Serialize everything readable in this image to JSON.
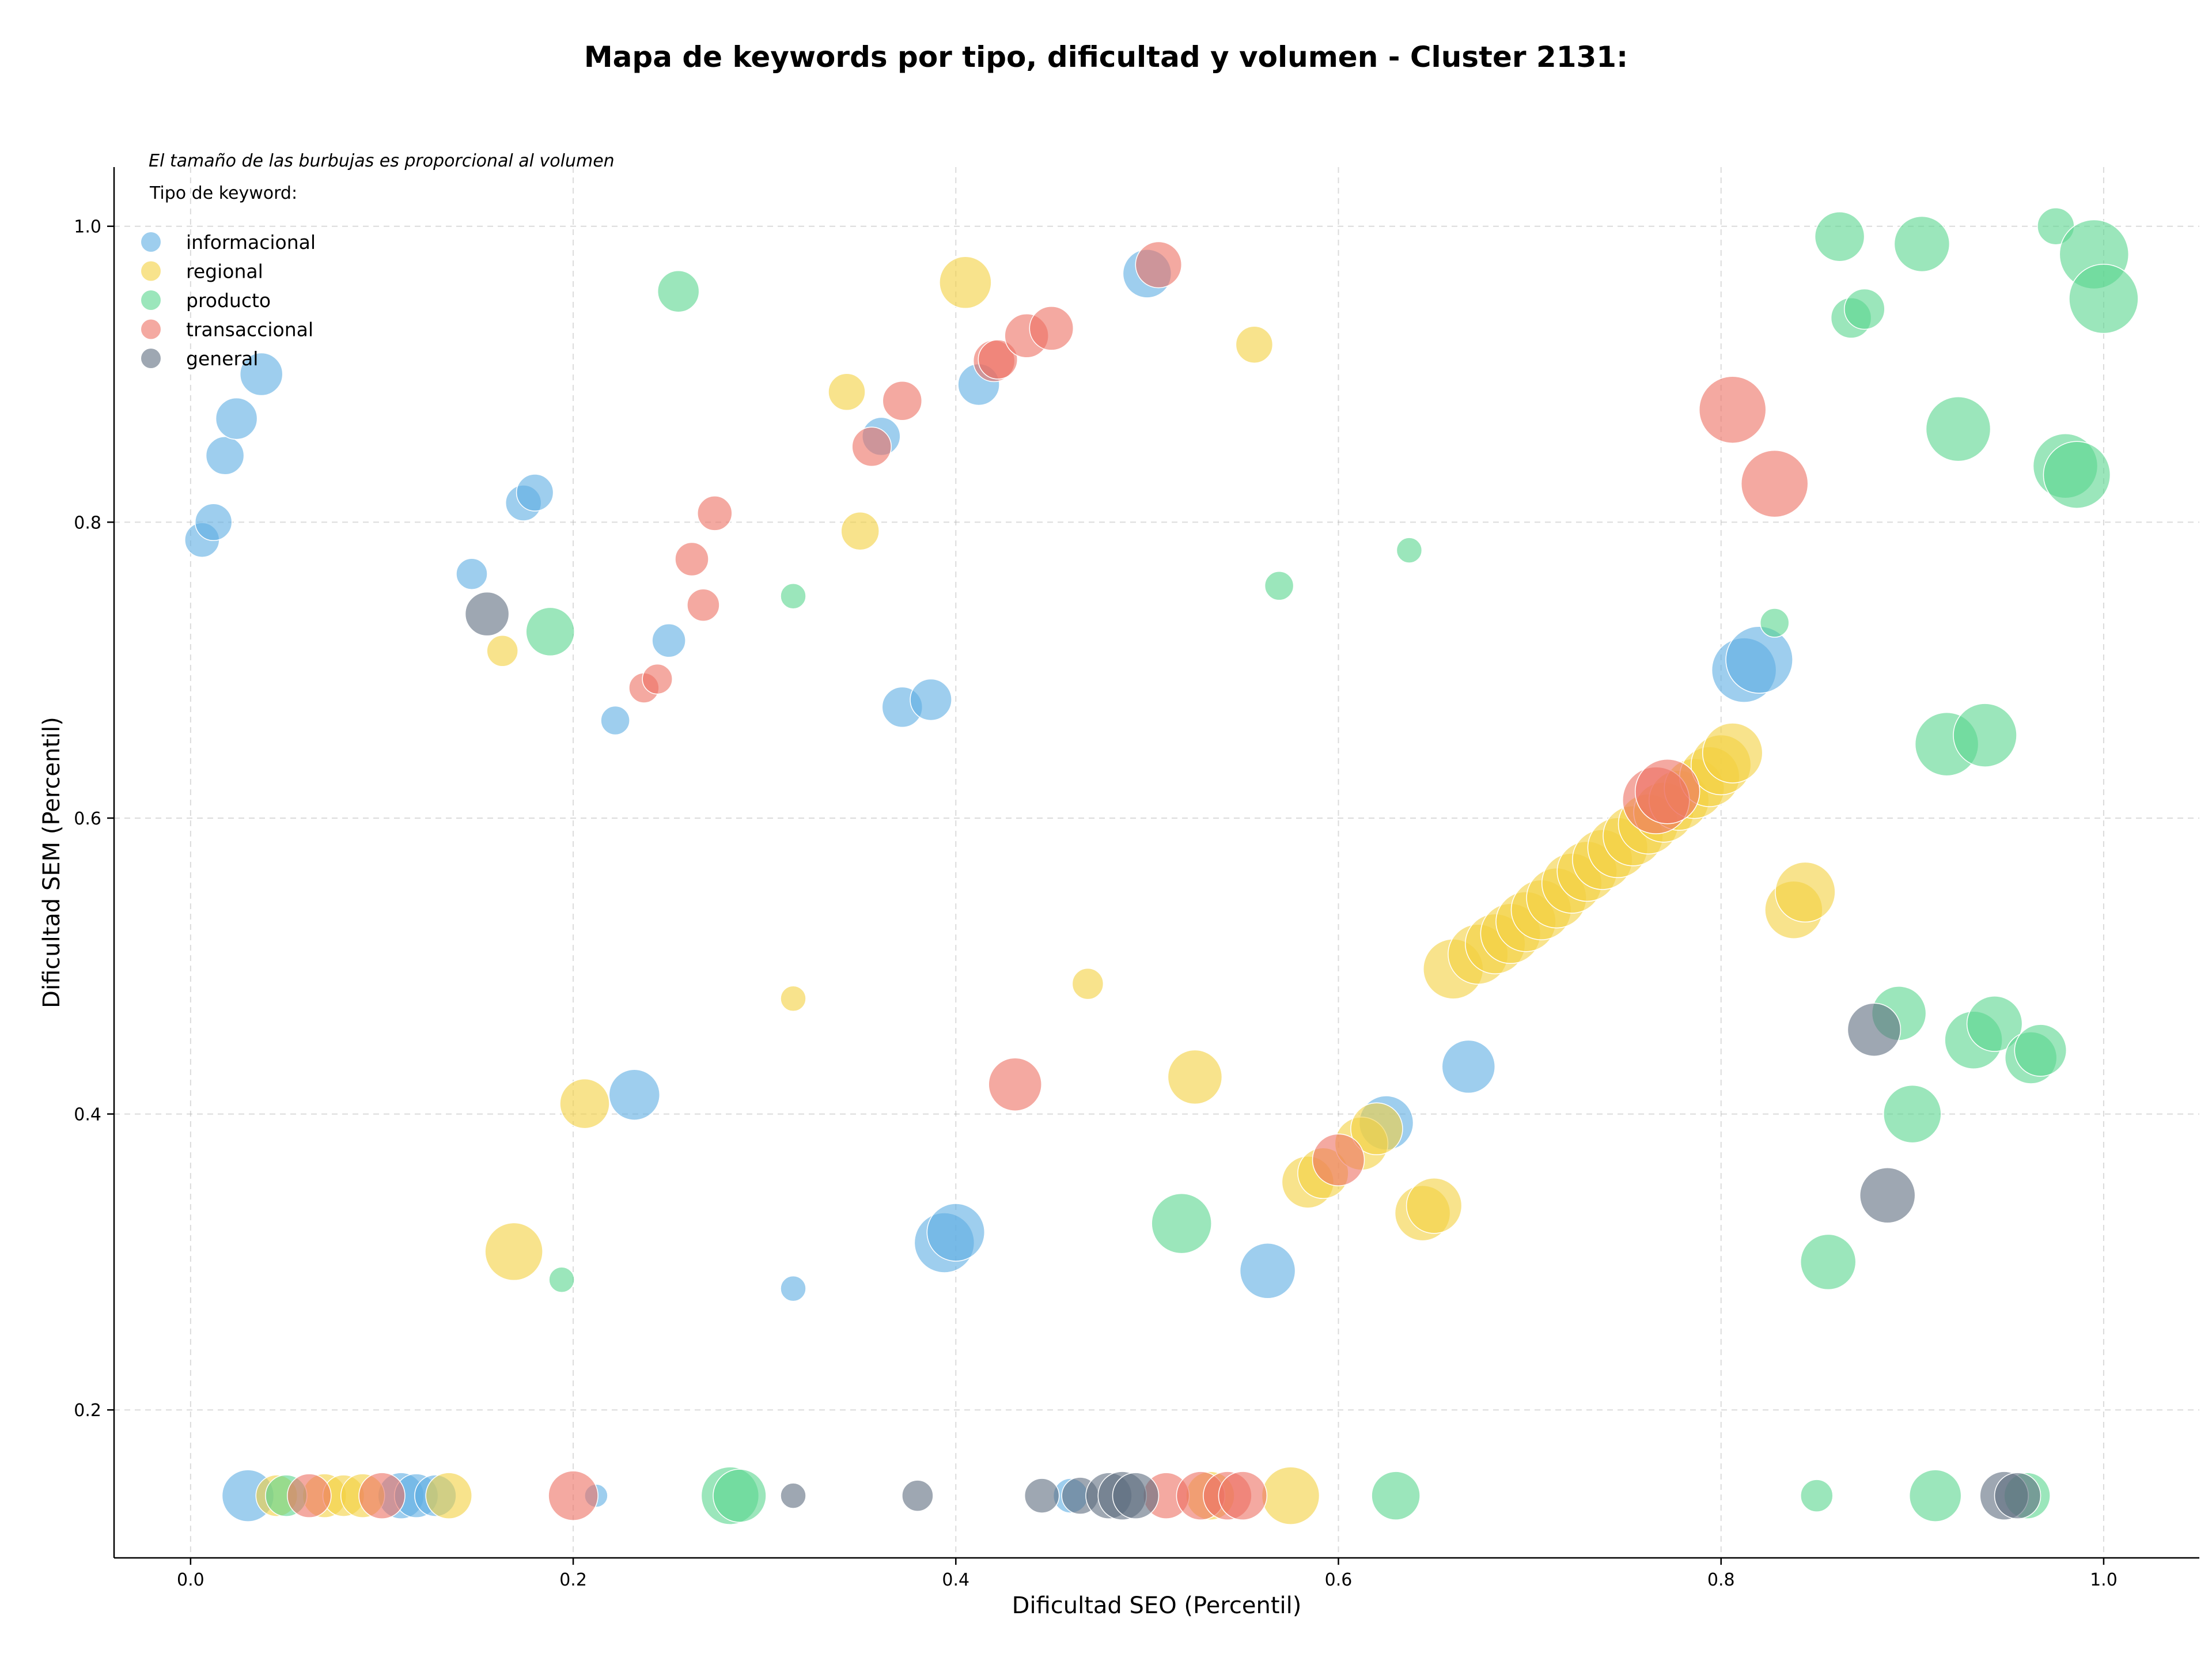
{
  "chart_data": {
    "type": "scatter",
    "title": "Mapa de keywords por tipo, dificultad y volumen - Cluster 2131:",
    "xlabel": "Dificultad SEO (Percentil)",
    "ylabel": "Dificultad SEM (Percentil)",
    "annotation": "El tamaño de las burbujas es proporcional al volumen",
    "legend_title": "Tipo de keyword:",
    "legend_position": "top-left",
    "grid": true,
    "xlim": [
      -0.04,
      1.05
    ],
    "ylim": [
      0.1,
      1.04
    ],
    "x_ticks": [
      0.0,
      0.2,
      0.4,
      0.6,
      0.8,
      1.0
    ],
    "y_ticks": [
      0.2,
      0.4,
      0.6,
      0.8,
      1.0
    ],
    "x_tick_labels": [
      "0.0",
      "0.2",
      "0.4",
      "0.6",
      "0.8",
      "1.0"
    ],
    "y_tick_labels": [
      "0.2",
      "0.4",
      "0.6",
      "0.8",
      "1.0"
    ],
    "series": [
      {
        "name": "informacional",
        "color": "#5dade2",
        "points": [
          [
            0.006,
            0.788,
            30
          ],
          [
            0.012,
            0.8,
            32
          ],
          [
            0.018,
            0.845,
            33
          ],
          [
            0.024,
            0.87,
            36
          ],
          [
            0.037,
            0.9,
            37
          ],
          [
            0.174,
            0.813,
            31
          ],
          [
            0.18,
            0.82,
            32
          ],
          [
            0.147,
            0.765,
            27
          ],
          [
            0.222,
            0.666,
            25
          ],
          [
            0.25,
            0.72,
            29
          ],
          [
            0.361,
            0.858,
            33
          ],
          [
            0.372,
            0.675,
            35
          ],
          [
            0.387,
            0.68,
            36
          ],
          [
            0.412,
            0.893,
            36
          ],
          [
            0.5,
            0.968,
            42
          ],
          [
            0.232,
            0.413,
            44
          ],
          [
            0.315,
            0.282,
            22
          ],
          [
            0.394,
            0.313,
            52
          ],
          [
            0.4,
            0.32,
            50
          ],
          [
            0.563,
            0.294,
            48
          ],
          [
            0.625,
            0.394,
            47
          ],
          [
            0.668,
            0.432,
            46
          ],
          [
            0.812,
            0.7,
            56
          ],
          [
            0.82,
            0.707,
            58
          ],
          [
            0.03,
            0.142,
            45
          ],
          [
            0.11,
            0.142,
            40
          ],
          [
            0.118,
            0.142,
            38
          ],
          [
            0.128,
            0.142,
            36
          ],
          [
            0.212,
            0.142,
            20
          ],
          [
            0.46,
            0.142,
            30
          ]
        ]
      },
      {
        "name": "regional",
        "color": "#f4d03f",
        "points": [
          [
            0.163,
            0.713,
            27
          ],
          [
            0.343,
            0.888,
            32
          ],
          [
            0.35,
            0.794,
            33
          ],
          [
            0.405,
            0.962,
            45
          ],
          [
            0.556,
            0.92,
            32
          ],
          [
            0.315,
            0.478,
            22
          ],
          [
            0.469,
            0.488,
            27
          ],
          [
            0.206,
            0.407,
            43
          ],
          [
            0.169,
            0.307,
            50
          ],
          [
            0.525,
            0.425,
            47
          ],
          [
            0.584,
            0.354,
            45
          ],
          [
            0.592,
            0.36,
            44
          ],
          [
            0.612,
            0.38,
            46
          ],
          [
            0.62,
            0.39,
            45
          ],
          [
            0.644,
            0.333,
            48
          ],
          [
            0.65,
            0.338,
            48
          ],
          [
            0.66,
            0.498,
            52
          ],
          [
            0.673,
            0.508,
            52
          ],
          [
            0.682,
            0.515,
            52
          ],
          [
            0.69,
            0.522,
            52
          ],
          [
            0.698,
            0.53,
            52
          ],
          [
            0.706,
            0.538,
            52
          ],
          [
            0.714,
            0.546,
            52
          ],
          [
            0.722,
            0.556,
            52
          ],
          [
            0.73,
            0.564,
            52
          ],
          [
            0.738,
            0.572,
            52
          ],
          [
            0.746,
            0.58,
            52
          ],
          [
            0.754,
            0.588,
            52
          ],
          [
            0.762,
            0.596,
            52
          ],
          [
            0.77,
            0.604,
            52
          ],
          [
            0.778,
            0.612,
            52
          ],
          [
            0.786,
            0.62,
            52
          ],
          [
            0.794,
            0.628,
            52
          ],
          [
            0.8,
            0.636,
            52
          ],
          [
            0.806,
            0.644,
            52
          ],
          [
            0.838,
            0.538,
            50
          ],
          [
            0.844,
            0.55,
            52
          ],
          [
            0.045,
            0.142,
            36
          ],
          [
            0.07,
            0.142,
            38
          ],
          [
            0.08,
            0.142,
            36
          ],
          [
            0.09,
            0.142,
            38
          ],
          [
            0.135,
            0.142,
            40
          ],
          [
            0.533,
            0.142,
            42
          ],
          [
            0.575,
            0.142,
            50
          ]
        ]
      },
      {
        "name": "producto",
        "color": "#58d68d",
        "points": [
          [
            0.255,
            0.956,
            36
          ],
          [
            0.188,
            0.726,
            42
          ],
          [
            0.315,
            0.75,
            22
          ],
          [
            0.569,
            0.757,
            25
          ],
          [
            0.637,
            0.781,
            22
          ],
          [
            0.828,
            0.732,
            25
          ],
          [
            0.862,
            0.993,
            43
          ],
          [
            0.868,
            0.938,
            35
          ],
          [
            0.875,
            0.944,
            35
          ],
          [
            0.905,
            0.988,
            48
          ],
          [
            0.924,
            0.863,
            56
          ],
          [
            0.975,
            1.0,
            32
          ],
          [
            0.995,
            0.981,
            60
          ],
          [
            1.0,
            0.951,
            60
          ],
          [
            0.98,
            0.838,
            56
          ],
          [
            0.986,
            0.832,
            58
          ],
          [
            0.918,
            0.65,
            55
          ],
          [
            0.938,
            0.656,
            55
          ],
          [
            0.893,
            0.468,
            47
          ],
          [
            0.932,
            0.45,
            50
          ],
          [
            0.943,
            0.461,
            48
          ],
          [
            0.962,
            0.438,
            45
          ],
          [
            0.967,
            0.443,
            45
          ],
          [
            0.9,
            0.4,
            50
          ],
          [
            0.856,
            0.3,
            48
          ],
          [
            0.518,
            0.326,
            52
          ],
          [
            0.194,
            0.288,
            22
          ],
          [
            0.05,
            0.142,
            36
          ],
          [
            0.282,
            0.142,
            50
          ],
          [
            0.287,
            0.142,
            46
          ],
          [
            0.63,
            0.142,
            42
          ],
          [
            0.85,
            0.142,
            28
          ],
          [
            0.912,
            0.142,
            45
          ],
          [
            0.96,
            0.142,
            40
          ]
        ]
      },
      {
        "name": "transaccional",
        "color": "#ec7063",
        "points": [
          [
            0.237,
            0.688,
            26
          ],
          [
            0.244,
            0.694,
            26
          ],
          [
            0.262,
            0.775,
            29
          ],
          [
            0.268,
            0.744,
            28
          ],
          [
            0.274,
            0.806,
            30
          ],
          [
            0.356,
            0.851,
            34
          ],
          [
            0.372,
            0.882,
            34
          ],
          [
            0.42,
            0.909,
            36
          ],
          [
            0.422,
            0.91,
            34
          ],
          [
            0.437,
            0.926,
            38
          ],
          [
            0.45,
            0.931,
            38
          ],
          [
            0.506,
            0.974,
            40
          ],
          [
            0.806,
            0.876,
            58
          ],
          [
            0.828,
            0.826,
            58
          ],
          [
            0.431,
            0.42,
            46
          ],
          [
            0.6,
            0.369,
            45
          ],
          [
            0.766,
            0.612,
            58
          ],
          [
            0.772,
            0.618,
            56
          ],
          [
            0.062,
            0.142,
            38
          ],
          [
            0.1,
            0.142,
            40
          ],
          [
            0.2,
            0.142,
            43
          ],
          [
            0.51,
            0.142,
            40
          ],
          [
            0.528,
            0.142,
            42
          ],
          [
            0.542,
            0.142,
            42
          ],
          [
            0.55,
            0.142,
            42
          ]
        ]
      },
      {
        "name": "general",
        "color": "#5d6d7e",
        "points": [
          [
            0.155,
            0.738,
            38
          ],
          [
            0.88,
            0.457,
            46
          ],
          [
            0.887,
            0.345,
            48
          ],
          [
            0.315,
            0.142,
            22
          ],
          [
            0.38,
            0.142,
            27
          ],
          [
            0.445,
            0.142,
            30
          ],
          [
            0.465,
            0.142,
            32
          ],
          [
            0.48,
            0.142,
            40
          ],
          [
            0.487,
            0.142,
            42
          ],
          [
            0.494,
            0.142,
            40
          ],
          [
            0.948,
            0.142,
            42
          ],
          [
            0.955,
            0.142,
            40
          ]
        ]
      }
    ]
  }
}
